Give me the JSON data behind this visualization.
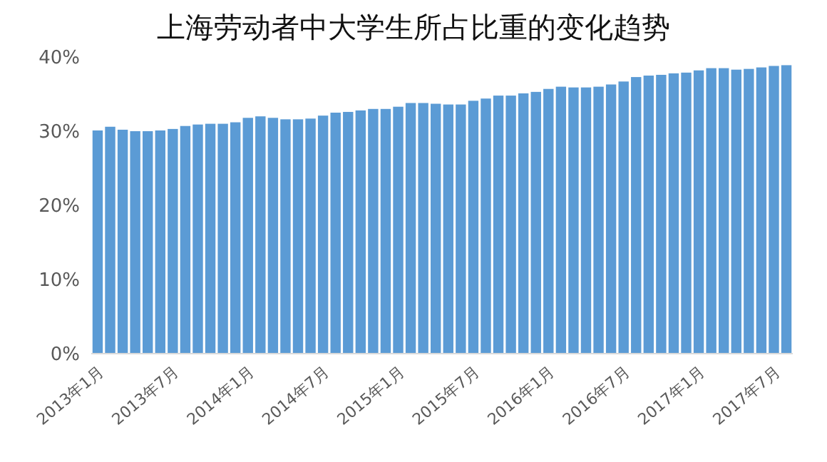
{
  "chart_data": {
    "type": "bar",
    "title": "上海劳动者中大学生所占比重的变化趋势",
    "categories": [
      "2013年1月",
      null,
      null,
      null,
      null,
      null,
      "2013年7月",
      null,
      null,
      null,
      null,
      null,
      "2014年1月",
      null,
      null,
      null,
      null,
      null,
      "2014年7月",
      null,
      null,
      null,
      null,
      null,
      "2015年1月",
      null,
      null,
      null,
      null,
      null,
      "2015年7月",
      null,
      null,
      null,
      null,
      null,
      "2016年1月",
      null,
      null,
      null,
      null,
      null,
      "2016年7月",
      null,
      null,
      null,
      null,
      null,
      "2017年1月",
      null,
      null,
      null,
      null,
      null,
      "2017年7月",
      null
    ],
    "values": [
      30.1,
      30.6,
      30.2,
      30.0,
      30.0,
      30.1,
      30.3,
      30.7,
      30.9,
      31.0,
      31.0,
      31.2,
      31.8,
      32.0,
      31.8,
      31.6,
      31.6,
      31.7,
      32.1,
      32.5,
      32.6,
      32.8,
      33.0,
      33.0,
      33.3,
      33.8,
      33.8,
      33.7,
      33.6,
      33.6,
      34.1,
      34.4,
      34.8,
      34.8,
      35.1,
      35.3,
      35.7,
      36.0,
      35.9,
      35.9,
      36.0,
      36.3,
      36.7,
      37.3,
      37.5,
      37.6,
      37.8,
      37.9,
      38.2,
      38.5,
      38.5,
      38.3,
      38.4,
      38.6,
      38.8,
      38.9
    ],
    "color": "#5b9bd5",
    "ylim": [
      0,
      40
    ],
    "yticks": [
      {
        "value": 0,
        "label": "0%"
      },
      {
        "value": 10,
        "label": "10%"
      },
      {
        "value": 20,
        "label": "20%"
      },
      {
        "value": 30,
        "label": "30%"
      },
      {
        "value": 40,
        "label": "40%"
      }
    ],
    "grid": false
  }
}
